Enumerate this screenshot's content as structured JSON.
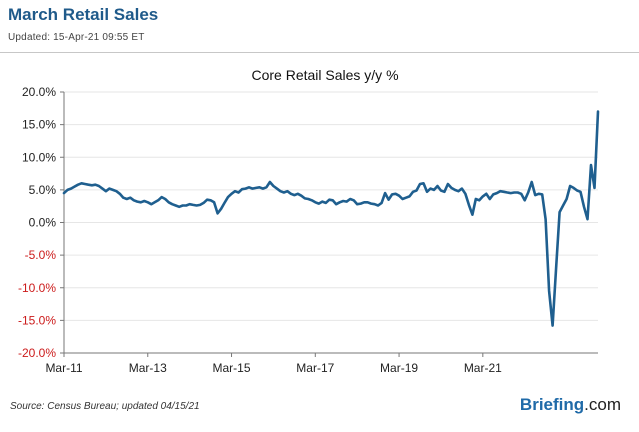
{
  "header": {
    "title": "March Retail Sales",
    "updated": "Updated: 15-Apr-21 09:55 ET"
  },
  "footer": {
    "source": "Source: Census Bureau; updated 04/15/21",
    "brand_name": "Briefing",
    "brand_tld": ".com"
  },
  "colors": {
    "line": "#1f5f8f",
    "negative_label": "#cc1b1b",
    "title": "#1f5a8a",
    "grid": "#e6e6e6",
    "axis": "#777777"
  },
  "chart_data": {
    "type": "line",
    "title": "Core Retail Sales y/y %",
    "xlabel": "",
    "ylabel": "",
    "ylim": [
      -20,
      20
    ],
    "y_ticks": [
      20,
      15,
      10,
      5,
      0,
      -5,
      -10,
      -15,
      -20
    ],
    "y_tick_labels": [
      "20.0%",
      "15.0%",
      "10.0%",
      "5.0%",
      "0.0%",
      "-5.0%",
      "-10.0%",
      "-15.0%",
      "-20.0%"
    ],
    "x_start": "Mar-11",
    "x_end": "Mar-21",
    "x_ticks": [
      "Mar-11",
      "Mar-13",
      "Mar-15",
      "Mar-17",
      "Mar-19",
      "Mar-21"
    ],
    "x_tick_positions": [
      0,
      24,
      48,
      72,
      96,
      120
    ],
    "series": [
      {
        "name": "Core Retail Sales y/y %",
        "values": [
          4.5,
          5.0,
          5.2,
          5.5,
          5.8,
          6.0,
          5.9,
          5.8,
          5.7,
          5.8,
          5.6,
          5.2,
          4.8,
          5.2,
          5.0,
          4.8,
          4.4,
          3.8,
          3.6,
          3.8,
          3.4,
          3.2,
          3.1,
          3.3,
          3.1,
          2.8,
          3.1,
          3.4,
          3.9,
          3.6,
          3.1,
          2.8,
          2.6,
          2.4,
          2.6,
          2.6,
          2.8,
          2.7,
          2.6,
          2.7,
          3.0,
          3.5,
          3.4,
          3.1,
          1.4,
          2.1,
          3.0,
          3.9,
          4.4,
          4.8,
          4.6,
          5.1,
          5.2,
          5.4,
          5.2,
          5.3,
          5.4,
          5.2,
          5.4,
          6.2,
          5.6,
          5.2,
          4.8,
          4.6,
          4.8,
          4.4,
          4.2,
          4.4,
          4.1,
          3.7,
          3.6,
          3.4,
          3.1,
          2.9,
          3.2,
          3.0,
          3.5,
          3.4,
          2.8,
          3.1,
          3.3,
          3.2,
          3.6,
          3.4,
          2.8,
          2.9,
          3.1,
          3.1,
          2.9,
          2.8,
          2.6,
          3.0,
          4.5,
          3.5,
          4.3,
          4.4,
          4.1,
          3.6,
          3.8,
          4.0,
          4.7,
          4.9,
          5.9,
          6.0,
          4.7,
          5.2,
          5.0,
          5.6,
          4.9,
          4.7,
          5.9,
          5.3,
          5.0,
          4.8,
          5.2,
          4.4,
          2.7,
          1.2,
          3.6,
          3.4,
          4.0,
          4.4,
          3.6,
          4.3,
          4.5,
          4.8,
          4.7,
          4.6,
          4.5,
          4.6,
          4.6,
          4.4,
          3.4,
          4.6,
          6.2,
          4.2,
          4.4,
          4.3,
          0.5,
          -10.5,
          -15.8,
          -7.0,
          1.6,
          2.6,
          3.6,
          5.6,
          5.3,
          4.9,
          4.7,
          2.4,
          0.5,
          8.8,
          5.3,
          17.0
        ]
      }
    ]
  }
}
